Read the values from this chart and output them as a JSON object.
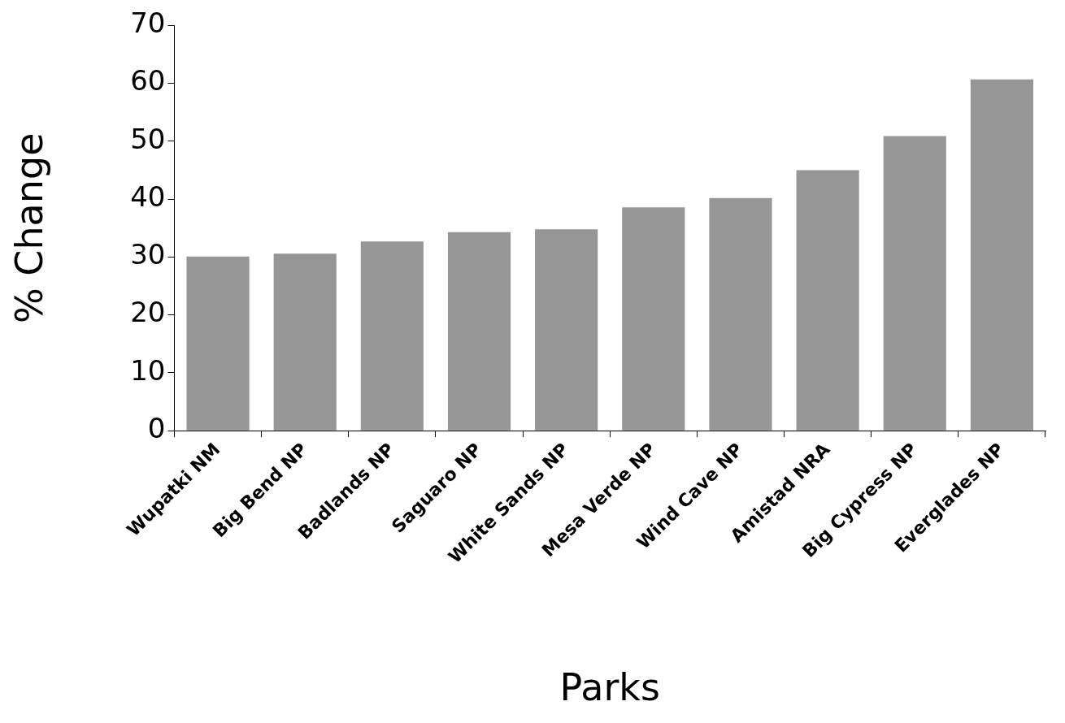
{
  "chart_data": {
    "type": "bar",
    "xlabel": "Parks",
    "ylabel": "% Change",
    "categories": [
      "Wupatki NM",
      "Big Bend NP",
      "Badlands NP",
      "Saguaro NP",
      "White Sands NP",
      "Mesa Verde NP",
      "Wind Cave NP",
      "Amistad NRA",
      "Big Cypress NP",
      "Everglades NP"
    ],
    "values": [
      30.1,
      30.6,
      32.7,
      34.3,
      34.8,
      38.6,
      40.2,
      45.0,
      50.9,
      60.7
    ],
    "color": "#969696",
    "ylim": [
      0,
      70
    ],
    "yticks": [
      0,
      10,
      20,
      30,
      40,
      50,
      60,
      70
    ],
    "grid": false,
    "legend": false
  }
}
